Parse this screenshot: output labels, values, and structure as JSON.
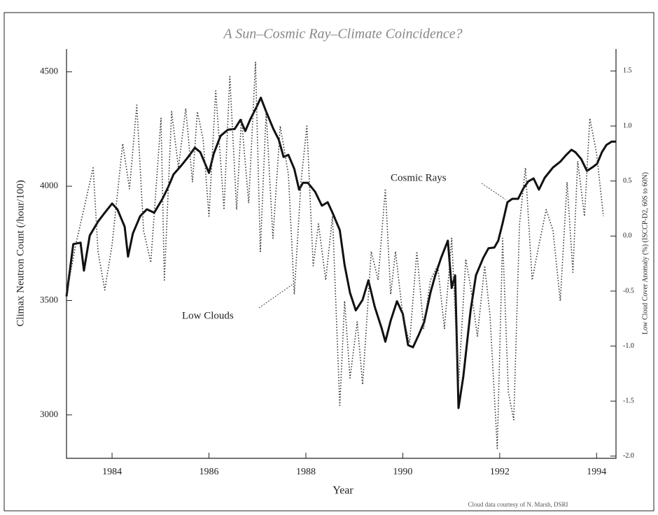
{
  "chart_data": {
    "type": "line",
    "title": "A Sun–Cosmic Ray–Climate Coincidence?",
    "xlabel": "Year",
    "ylabel": "Climax Neutron Count (/hour/100)",
    "y2label": "Low Cloud Cover Anomaly (%) (ISCCP-D2, 60S to 60N)",
    "annotations": [
      "Cosmic Rays",
      "Low Clouds"
    ],
    "footer": "Cloud data courtesy of N. Marsh, DSRI",
    "xlim": [
      1983.06,
      1994.4
    ],
    "xticks": [
      1984,
      1986,
      1988,
      1990,
      1992,
      1994
    ],
    "ylim": [
      2810,
      4600
    ],
    "yticks": [
      3000,
      3500,
      4000,
      4500
    ],
    "y2lim": [
      -2.02,
      1.7
    ],
    "y2ticks": [
      {
        "value": -2,
        "label": "-2.0"
      },
      -1.5,
      {
        "value": -1,
        "label": "-1.0"
      },
      -0.5,
      {
        "value": 0,
        "label": "0.0"
      },
      0.5,
      {
        "value": 1,
        "label": "1.0"
      },
      1.5
    ],
    "series": [
      {
        "name": "Cosmic Rays",
        "color": "#111",
        "style": "solid",
        "x": [
          1983.06,
          1983.2,
          1983.35,
          1983.42,
          1983.54,
          1983.71,
          1983.85,
          1984.0,
          1984.11,
          1984.26,
          1984.33,
          1984.43,
          1984.58,
          1984.72,
          1984.87,
          1985.04,
          1985.16,
          1985.27,
          1985.42,
          1985.56,
          1985.71,
          1985.82,
          1986.0,
          1986.1,
          1986.24,
          1986.39,
          1986.53,
          1986.65,
          1986.75,
          1986.86,
          1986.97,
          1987.07,
          1987.18,
          1987.33,
          1987.44,
          1987.54,
          1987.64,
          1987.76,
          1987.86,
          1987.94,
          1988.04,
          1988.19,
          1988.33,
          1988.45,
          1988.55,
          1988.7,
          1988.8,
          1988.91,
          1989.03,
          1989.17,
          1989.29,
          1989.42,
          1989.56,
          1989.64,
          1989.75,
          1989.88,
          1990.0,
          1990.11,
          1990.21,
          1990.33,
          1990.44,
          1990.57,
          1990.67,
          1990.79,
          1990.93,
          1991.01,
          1991.08,
          1991.15,
          1991.25,
          1991.4,
          1991.51,
          1991.66,
          1991.77,
          1991.89,
          1991.97,
          1992.06,
          1992.16,
          1992.26,
          1992.38,
          1992.49,
          1992.59,
          1992.7,
          1992.81,
          1992.93,
          1993.1,
          1993.25,
          1993.36,
          1993.48,
          1993.56,
          1993.68,
          1993.8,
          1993.91,
          1994.01,
          1994.11,
          1994.2,
          1994.31,
          1994.4
        ],
        "values": [
          3518,
          3747,
          3753,
          3631,
          3784,
          3845,
          3884,
          3924,
          3899,
          3823,
          3692,
          3793,
          3869,
          3899,
          3884,
          3945,
          3997,
          4052,
          4088,
          4125,
          4168,
          4149,
          4058,
          4143,
          4220,
          4247,
          4250,
          4290,
          4241,
          4296,
          4341,
          4387,
          4326,
          4250,
          4204,
          4128,
          4137,
          4076,
          3985,
          4015,
          4015,
          3976,
          3915,
          3930,
          3884,
          3808,
          3655,
          3534,
          3457,
          3503,
          3588,
          3473,
          3381,
          3320,
          3412,
          3497,
          3442,
          3305,
          3296,
          3351,
          3405,
          3534,
          3610,
          3686,
          3762,
          3555,
          3610,
          3030,
          3168,
          3457,
          3610,
          3686,
          3729,
          3732,
          3762,
          3838,
          3930,
          3945,
          3945,
          3991,
          4021,
          4034,
          3985,
          4037,
          4082,
          4107,
          4134,
          4159,
          4149,
          4119,
          4067,
          4082,
          4098,
          4149,
          4180,
          4195,
          4195
        ]
      },
      {
        "name": "Low Clouds",
        "color": "#333",
        "style": "dotted",
        "axis": "y2",
        "x": [
          1983.06,
          1983.25,
          1983.61,
          1983.71,
          1983.85,
          1984.0,
          1984.22,
          1984.36,
          1984.51,
          1984.65,
          1984.8,
          1985.01,
          1985.08,
          1985.23,
          1985.37,
          1985.52,
          1985.66,
          1985.76,
          1985.88,
          1986.0,
          1986.14,
          1986.31,
          1986.43,
          1986.57,
          1986.67,
          1986.82,
          1986.96,
          1987.06,
          1987.18,
          1987.32,
          1987.47,
          1987.64,
          1987.76,
          1987.9,
          1988.02,
          1988.15,
          1988.26,
          1988.41,
          1988.55,
          1988.7,
          1988.8,
          1988.91,
          1989.06,
          1989.17,
          1989.35,
          1989.49,
          1989.64,
          1989.75,
          1989.85,
          1990.0,
          1990.14,
          1990.29,
          1990.43,
          1990.57,
          1990.72,
          1990.86,
          1991.01,
          1991.15,
          1991.3,
          1991.4,
          1991.54,
          1991.69,
          1991.8,
          1991.95,
          1992.06,
          1992.18,
          1992.29,
          1992.41,
          1992.53,
          1992.67,
          1992.81,
          1992.96,
          1993.1,
          1993.25,
          1993.39,
          1993.51,
          1993.61,
          1993.75,
          1993.86,
          1994.0,
          1994.14
        ],
        "values": [
          -0.53,
          -0.08,
          0.62,
          -0.14,
          -0.49,
          -0.08,
          0.84,
          0.43,
          1.19,
          0.05,
          -0.24,
          1.07,
          -0.4,
          1.13,
          0.62,
          1.16,
          0.49,
          1.13,
          0.88,
          0.18,
          1.32,
          0.24,
          1.45,
          0.24,
          1.07,
          0.3,
          1.58,
          -0.14,
          1.13,
          -0.02,
          1.0,
          0.56,
          -0.53,
          0.49,
          1.0,
          -0.27,
          0.11,
          -0.4,
          0.18,
          -1.54,
          -0.59,
          -1.29,
          -0.78,
          -1.35,
          -0.14,
          -0.4,
          0.43,
          -0.53,
          -0.14,
          -0.72,
          -0.97,
          -0.14,
          -0.84,
          -0.4,
          -0.27,
          -0.84,
          -0.02,
          -1.35,
          -0.21,
          -0.46,
          -0.91,
          -0.27,
          -0.72,
          -1.93,
          -0.02,
          -1.42,
          -1.67,
          0.11,
          0.62,
          -0.4,
          -0.08,
          0.24,
          0.05,
          -0.59,
          0.49,
          -0.33,
          0.68,
          0.18,
          1.07,
          0.75,
          0.18
        ]
      }
    ]
  }
}
